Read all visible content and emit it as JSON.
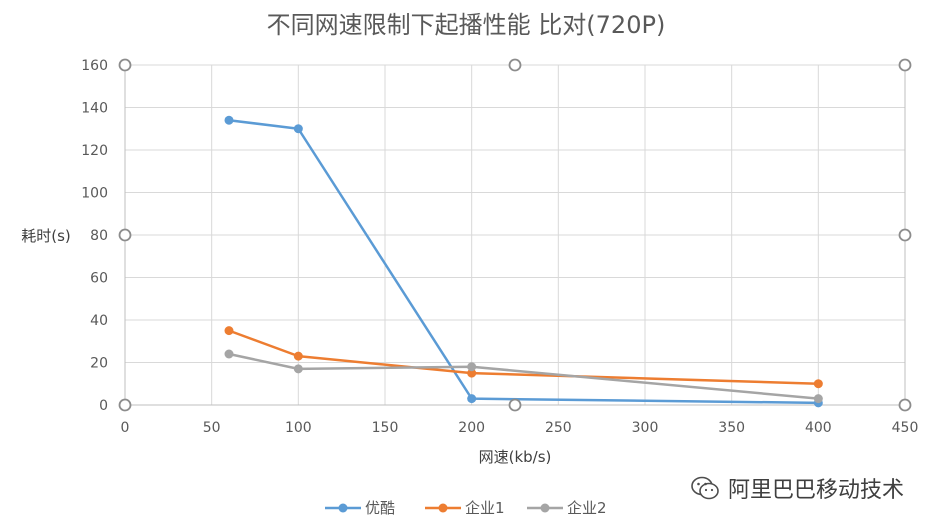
{
  "chart_data": {
    "type": "line",
    "title": "不同网速限制下起播性能 比对(720P)",
    "xlabel": "网速(kb/s)",
    "ylabel": "耗时(s)",
    "xlim": [
      0,
      450
    ],
    "ylim": [
      0,
      160
    ],
    "x_ticks": [
      0,
      50,
      100,
      150,
      200,
      250,
      300,
      350,
      400,
      450
    ],
    "y_ticks": [
      0,
      20,
      40,
      60,
      80,
      100,
      120,
      140,
      160
    ],
    "x_tick_labels": [
      "0",
      "50",
      "100",
      "150",
      "200",
      "250",
      "300",
      "350",
      "400",
      "450"
    ],
    "y_tick_labels": [
      "0",
      "20",
      "40",
      "60",
      "80",
      "100",
      "120",
      "140",
      "160"
    ],
    "grid": true,
    "legend_position": "bottom",
    "x": [
      60,
      100,
      200,
      400
    ],
    "series": [
      {
        "name": "优酷",
        "color": "#5B9BD5",
        "values": [
          134,
          130,
          3,
          1
        ]
      },
      {
        "name": "企业1",
        "color": "#ED7D31",
        "values": [
          35,
          23,
          15,
          10
        ]
      },
      {
        "name": "企业2",
        "color": "#A5A5A5",
        "values": [
          24,
          17,
          18,
          3
        ]
      }
    ]
  },
  "watermark": {
    "text": "阿里巴巴移动技术",
    "icon": "wechat-icon"
  }
}
